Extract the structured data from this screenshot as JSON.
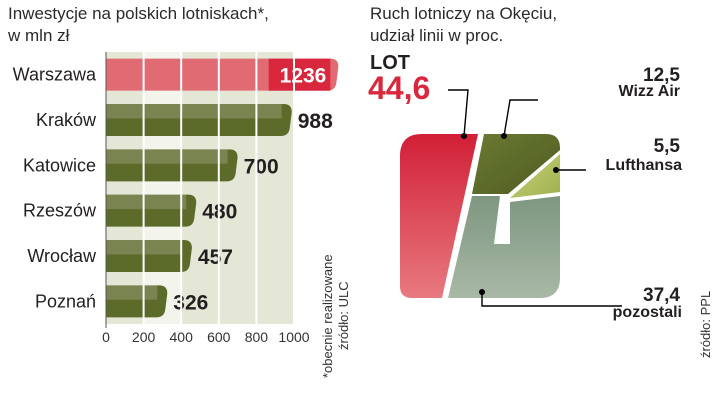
{
  "chart_data": [
    {
      "type": "bar",
      "orientation": "horizontal",
      "title": "Inwestycje na polskich lotniskach*,",
      "subtitle": "w mln zł",
      "categories": [
        "Warszawa",
        "Kraków",
        "Katowice",
        "Rzeszów",
        "Wrocław",
        "Poznań"
      ],
      "values": [
        1236,
        988,
        700,
        480,
        457,
        326
      ],
      "value_labels": [
        "1236",
        "988",
        "700",
        "480",
        "457",
        "326"
      ],
      "xlim": [
        0,
        1000
      ],
      "xticks": [
        "0",
        "200",
        "400",
        "600",
        "800",
        "1000"
      ],
      "grid": true,
      "footnote": "*obecnie realizowane",
      "source": "źródło: ULC",
      "colors": {
        "highlight": "#d9283d",
        "bars": "#5c6a2a",
        "grid_bg": "#e4e6d6"
      }
    },
    {
      "type": "pie",
      "title": "Ruch lotniczy na Okęciu,",
      "subtitle": "udział linii w proc.",
      "slices": [
        {
          "name": "LOT",
          "value": 44.6,
          "value_label": "44,6",
          "color": "#d9283d"
        },
        {
          "name": "Wizz Air",
          "value": 12.5,
          "value_label": "12,5",
          "color": "#5c6a2a"
        },
        {
          "name": "Lufthansa",
          "value": 5.5,
          "value_label": "5,5",
          "color": "#b8c46a"
        },
        {
          "name": "pozostali",
          "value": 37.4,
          "value_label": "37,4",
          "color": "#7f9a86"
        }
      ],
      "source": "źródło: PPL"
    }
  ]
}
